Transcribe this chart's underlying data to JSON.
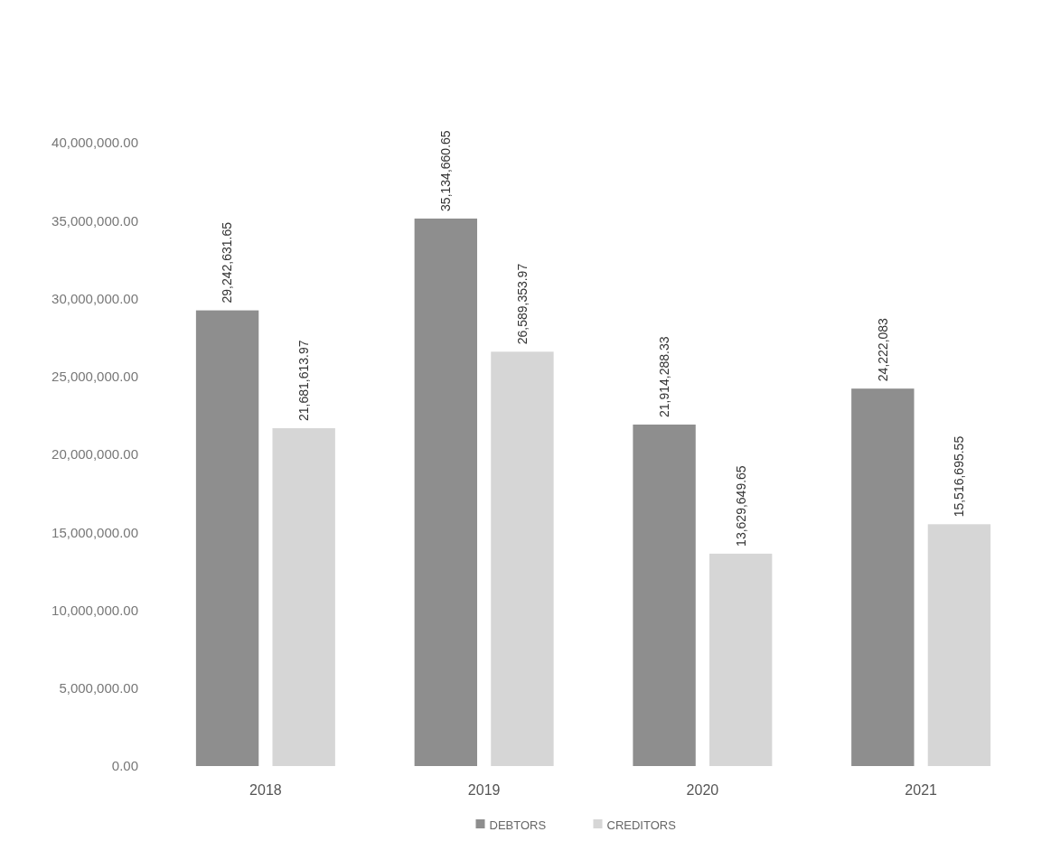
{
  "chart_data": {
    "type": "bar",
    "categories": [
      "2018",
      "2019",
      "2020",
      "2021"
    ],
    "series": [
      {
        "name": "DEBTORS",
        "color": "#8e8e8e",
        "values": [
          29242631.65,
          35134660.65,
          21914288.33,
          24222083
        ],
        "value_labels": [
          "29,242,631.65",
          "35,134,660.65",
          "21,914,288.33",
          "24,222,083"
        ]
      },
      {
        "name": "CREDITORS",
        "color": "#d6d6d6",
        "values": [
          21681613.97,
          26589353.97,
          13629649.65,
          15516695.55
        ],
        "value_labels": [
          "21,681,613.97",
          "26,589,353.97",
          "13,629,649.65",
          "15,516,695.55"
        ]
      }
    ],
    "ylim": [
      0,
      40000000
    ],
    "yticks": [
      {
        "value": 0,
        "label": "0.00"
      },
      {
        "value": 5000000,
        "label": "5,000,000.00"
      },
      {
        "value": 10000000,
        "label": "10,000,000.00"
      },
      {
        "value": 15000000,
        "label": "15,000,000.00"
      },
      {
        "value": 20000000,
        "label": "20,000,000.00"
      },
      {
        "value": 25000000,
        "label": "25,000,000.00"
      },
      {
        "value": 30000000,
        "label": "30,000,000.00"
      },
      {
        "value": 35000000,
        "label": "35,000,000.00"
      },
      {
        "value": 40000000,
        "label": "40,000,000.00"
      }
    ],
    "grid": false,
    "legend": "bottom"
  }
}
